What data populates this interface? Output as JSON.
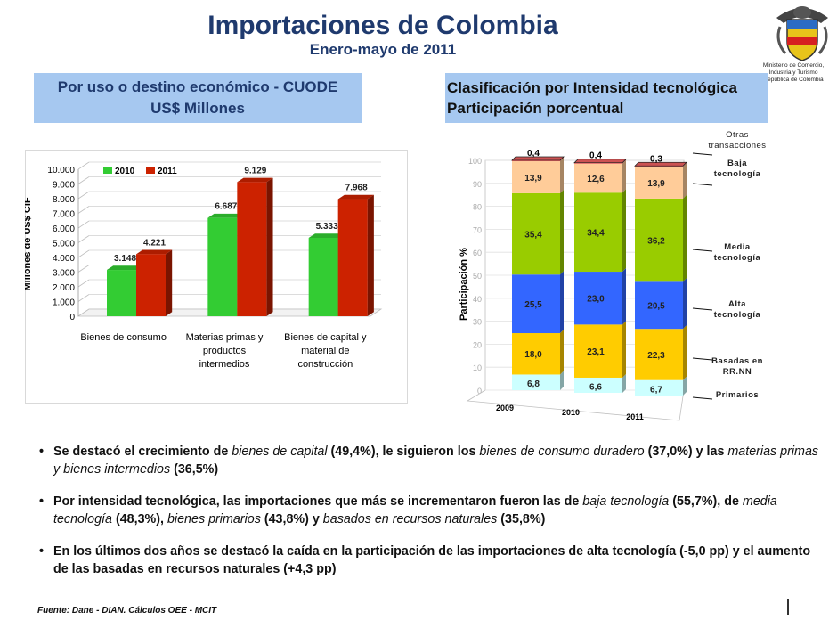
{
  "title": "Importaciones de Colombia",
  "subtitle": "Enero-mayo de 2011",
  "ministry": [
    "Ministerio de Comercio,",
    "Industria y Turismo",
    "República de Colombia"
  ],
  "left_header": [
    "Por uso o destino económico - CUODE",
    "US$ Millones"
  ],
  "right_header": [
    "Clasificación por Intensidad tecnológica",
    "Participación porcentual"
  ],
  "chart_data": [
    {
      "type": "bar",
      "ylabel": "Millones de US$ CIF",
      "ylim": [
        0,
        10000
      ],
      "yticks": [
        "0",
        "1.000",
        "2.000",
        "3.000",
        "4.000",
        "5.000",
        "6.000",
        "7.000",
        "8.000",
        "9.000",
        "10.000"
      ],
      "categories": [
        [
          "Bienes de consumo"
        ],
        [
          "Materias primas y",
          "productos",
          "intermedios"
        ],
        [
          "Bienes de capital y",
          "material de",
          "construcción"
        ]
      ],
      "series": [
        {
          "name": "2010",
          "color": "#33cc33",
          "values": [
            3148,
            6687,
            5333
          ],
          "labels": [
            "3.148",
            "6.687",
            "5.333"
          ]
        },
        {
          "name": "2011",
          "color": "#cc2200",
          "values": [
            4221,
            9129,
            7968
          ],
          "labels": [
            "4.221",
            "9.129",
            "7.968"
          ]
        }
      ],
      "legend_position": "top-left",
      "grid": true
    },
    {
      "type": "bar",
      "stacked": true,
      "ylabel": "Participación %",
      "ylim": [
        0,
        100
      ],
      "yticks": [
        "0",
        "10",
        "20",
        "30",
        "40",
        "50",
        "60",
        "70",
        "80",
        "90",
        "100"
      ],
      "categories": [
        "2009",
        "2010",
        "2011"
      ],
      "series": [
        {
          "name": "Primarios",
          "color": "#ccffff",
          "values": [
            6.8,
            6.6,
            6.7
          ],
          "labels": [
            "6,8",
            "6,6",
            "6,7"
          ]
        },
        {
          "name": "Basadas en RR.NN",
          "color": "#ffcc00",
          "values": [
            18.0,
            23.1,
            22.3
          ],
          "labels": [
            "18,0",
            "23,1",
            "22,3"
          ]
        },
        {
          "name": "Alta tecnología",
          "color": "#3366ff",
          "values": [
            25.5,
            23.0,
            20.5
          ],
          "labels": [
            "25,5",
            "23,0",
            "20,5"
          ]
        },
        {
          "name": "Media tecnología",
          "color": "#99cc00",
          "values": [
            35.4,
            34.4,
            36.2
          ],
          "labels": [
            "35,4",
            "34,4",
            "36,2"
          ]
        },
        {
          "name": "Baja tecnología",
          "color": "#ffcc99",
          "values": [
            13.9,
            12.6,
            13.9
          ],
          "labels": [
            "13,9",
            "12,6",
            "13,9"
          ]
        },
        {
          "name": "Otras transacciones",
          "color": "#ff6666",
          "values": [
            0.4,
            0.4,
            0.3
          ],
          "labels": [
            "0,4",
            "0,4",
            "0,3"
          ]
        }
      ],
      "legend_labels": [
        [
          "Otras",
          "transacciones"
        ],
        [
          "Baja",
          "tecnología"
        ],
        [
          "Media",
          "tecnología"
        ],
        [
          "Alta",
          "tecnología"
        ],
        [
          "Basadas en",
          "RR.NN"
        ],
        [
          "Primarios"
        ]
      ],
      "legend_position": "right"
    }
  ],
  "bullets": [
    {
      "parts": [
        {
          "t": "Se destacó el crecimiento de ",
          "i": false
        },
        {
          "t": "bienes de capital",
          "i": true
        },
        {
          "t": " (49,4%), le siguieron los ",
          "i": false
        },
        {
          "t": "bienes de consumo duradero",
          "i": true
        },
        {
          "t": " (37,0%) y las ",
          "i": false
        },
        {
          "t": "materias primas y bienes intermedios",
          "i": true
        },
        {
          "t": " (36,5%)",
          "i": false
        }
      ]
    },
    {
      "parts": [
        {
          "t": "Por intensidad tecnológica, las importaciones que más se incrementaron fueron las de ",
          "i": false
        },
        {
          "t": "baja tecnología",
          "i": true
        },
        {
          "t": " (55,7%), de ",
          "i": false
        },
        {
          "t": "media tecnología",
          "i": true
        },
        {
          "t": " (48,3%), ",
          "i": false
        },
        {
          "t": "bienes primarios",
          "i": true
        },
        {
          "t": " (43,8%) y ",
          "i": false
        },
        {
          "t": "basados en recursos naturales",
          "i": true
        },
        {
          "t": " (35,8%)",
          "i": false
        }
      ]
    },
    {
      "parts": [
        {
          "t": "En los últimos dos años se destacó  la caída en la participación de las importaciones de alta tecnología (-5,0 pp) y el aumento de las basadas en recursos naturales (+4,3 pp)",
          "i": false
        }
      ]
    }
  ],
  "footer": "Fuente: Dane - DIAN. Cálculos OEE - MCIT"
}
